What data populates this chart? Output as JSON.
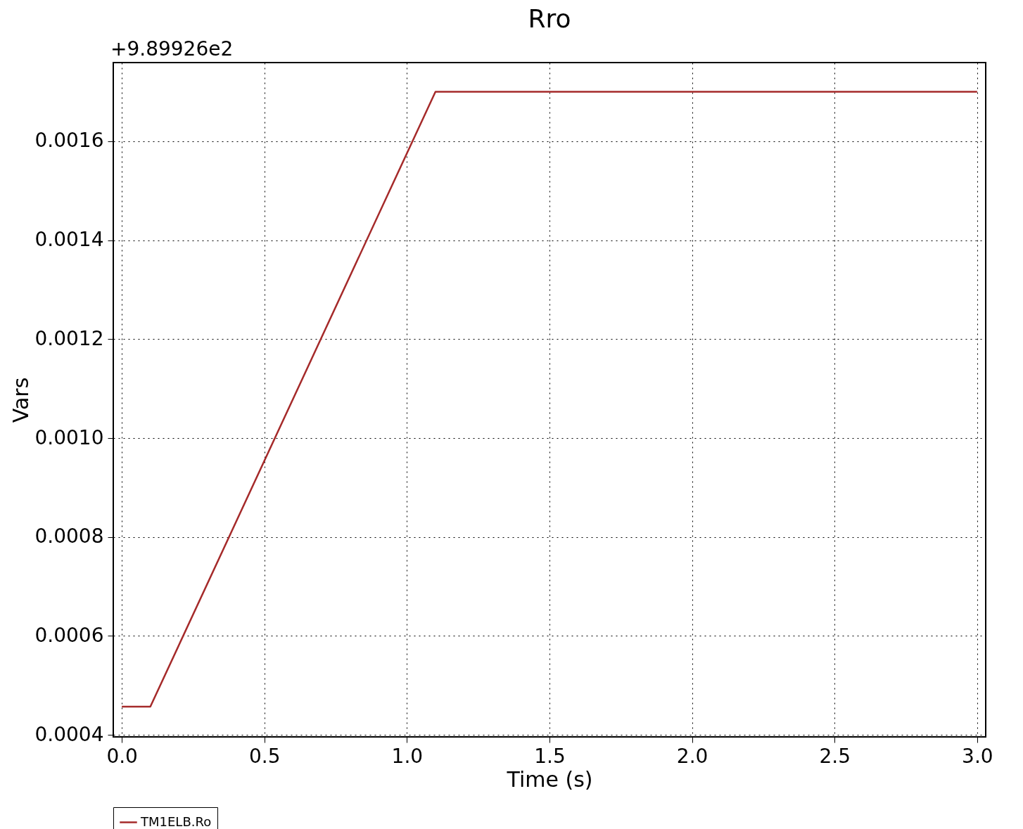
{
  "chart_data": {
    "type": "line",
    "title": "Rro",
    "xlabel": "Time (s)",
    "ylabel": "Vars",
    "annotations": [
      "+9.89926e2"
    ],
    "x": [
      0,
      0.1,
      1.1,
      3
    ],
    "series": [
      {
        "name": "TM1ELB.Ro",
        "color": "#a52a2a",
        "values": [
          0.000457,
          0.000457,
          0.0017,
          0.0017
        ]
      }
    ],
    "xlim": [
      -0.03,
      3.03
    ],
    "xticks": [
      {
        "value": 0,
        "label": "0.0"
      },
      {
        "value": 0.5,
        "label": "0.5"
      },
      {
        "value": 1,
        "label": "1.0"
      },
      {
        "value": 1.5,
        "label": "1.5"
      },
      {
        "value": 2,
        "label": "2.0"
      },
      {
        "value": 2.5,
        "label": "2.5"
      },
      {
        "value": 3,
        "label": "3.0"
      }
    ],
    "ylim": [
      0.000396,
      0.001759
    ],
    "yticks": [
      {
        "value": 0.0004,
        "label": "0.0004"
      },
      {
        "value": 0.0006,
        "label": "0.0006"
      },
      {
        "value": 0.0008,
        "label": "0.0008"
      },
      {
        "value": 0.001,
        "label": "0.0010"
      },
      {
        "value": 0.0012,
        "label": "0.0012"
      },
      {
        "value": 0.0014,
        "label": "0.0014"
      },
      {
        "value": 0.0016,
        "label": "0.0016"
      }
    ],
    "grid": true,
    "legend": "bottom",
    "line_style": "solid",
    "marker": "none"
  }
}
